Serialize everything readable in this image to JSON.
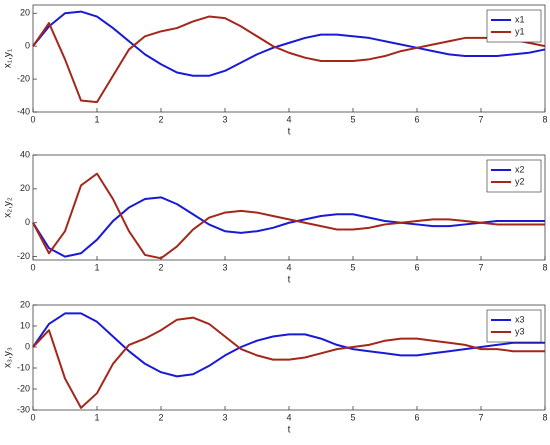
{
  "chart_data": [
    {
      "type": "line",
      "xlabel": "t",
      "ylabel": "x₁,y₁",
      "xlim": [
        0,
        8
      ],
      "xticks": [
        0,
        1,
        2,
        3,
        4,
        5,
        6,
        7,
        8
      ],
      "ylim": [
        -40,
        25
      ],
      "yticks": [
        -40,
        -20,
        0,
        20
      ],
      "legend": "upper right",
      "x": [
        0,
        0.25,
        0.5,
        0.75,
        1,
        1.25,
        1.5,
        1.75,
        2,
        2.25,
        2.5,
        2.75,
        3,
        3.25,
        3.5,
        3.75,
        4,
        4.25,
        4.5,
        4.75,
        5,
        5.25,
        5.5,
        5.75,
        6,
        6.25,
        6.5,
        6.75,
        7,
        7.25,
        7.5,
        7.75,
        8
      ],
      "series": [
        {
          "name": "x1",
          "color": "#1a1ad6",
          "values": [
            0,
            12,
            20,
            21,
            18,
            11,
            3,
            -5,
            -11,
            -16,
            -18,
            -18,
            -15,
            -10,
            -5,
            -1,
            2,
            5,
            7,
            7,
            6,
            5,
            3,
            1,
            -1,
            -3,
            -5,
            -6,
            -6,
            -6,
            -5,
            -4,
            -2
          ]
        },
        {
          "name": "y1",
          "color": "#a3281a",
          "values": [
            0,
            14,
            -8,
            -33,
            -34,
            -18,
            -2,
            6,
            9,
            11,
            15,
            18,
            17,
            12,
            6,
            0,
            -4,
            -7,
            -9,
            -9,
            -9,
            -8,
            -6,
            -3,
            -1,
            1,
            3,
            5,
            5,
            5,
            4,
            2,
            0
          ]
        }
      ]
    },
    {
      "type": "line",
      "xlabel": "t",
      "ylabel": "x₂,y₂",
      "xlim": [
        0,
        8
      ],
      "xticks": [
        0,
        1,
        2,
        3,
        4,
        5,
        6,
        7,
        8
      ],
      "ylim": [
        -22,
        40
      ],
      "yticks": [
        -20,
        0,
        20,
        40
      ],
      "legend": "upper right",
      "x": [
        0,
        0.25,
        0.5,
        0.75,
        1,
        1.25,
        1.5,
        1.75,
        2,
        2.25,
        2.5,
        2.75,
        3,
        3.25,
        3.5,
        3.75,
        4,
        4.25,
        4.5,
        4.75,
        5,
        5.25,
        5.5,
        5.75,
        6,
        6.25,
        6.5,
        6.75,
        7,
        7.25,
        7.5,
        7.75,
        8
      ],
      "series": [
        {
          "name": "x2",
          "color": "#1a1ad6",
          "values": [
            0,
            -15,
            -20,
            -18,
            -10,
            1,
            9,
            14,
            15,
            11,
            5,
            -1,
            -5,
            -6,
            -5,
            -3,
            0,
            2,
            4,
            5,
            5,
            3,
            1,
            0,
            -1,
            -2,
            -2,
            -1,
            0,
            1,
            1,
            1,
            1
          ]
        },
        {
          "name": "y2",
          "color": "#a3281a",
          "values": [
            0,
            -18,
            -5,
            22,
            29,
            14,
            -5,
            -19,
            -21,
            -14,
            -4,
            3,
            6,
            7,
            6,
            4,
            2,
            0,
            -2,
            -4,
            -4,
            -3,
            -1,
            0,
            1,
            2,
            2,
            1,
            0,
            -1,
            -1,
            -1,
            -1
          ]
        }
      ]
    },
    {
      "type": "line",
      "xlabel": "t",
      "ylabel": "x₃,y₃",
      "xlim": [
        0,
        8
      ],
      "xticks": [
        0,
        1,
        2,
        3,
        4,
        5,
        6,
        7,
        8
      ],
      "ylim": [
        -30,
        20
      ],
      "yticks": [
        -30,
        -20,
        -10,
        0,
        10,
        20
      ],
      "legend": "upper right",
      "x": [
        0,
        0.25,
        0.5,
        0.75,
        1,
        1.25,
        1.5,
        1.75,
        2,
        2.25,
        2.5,
        2.75,
        3,
        3.25,
        3.5,
        3.75,
        4,
        4.25,
        4.5,
        4.75,
        5,
        5.25,
        5.5,
        5.75,
        6,
        6.25,
        6.5,
        6.75,
        7,
        7.25,
        7.5,
        7.75,
        8
      ],
      "series": [
        {
          "name": "x3",
          "color": "#1a1ad6",
          "values": [
            0,
            11,
            16,
            16,
            12,
            5,
            -2,
            -8,
            -12,
            -14,
            -13,
            -9,
            -4,
            0,
            3,
            5,
            6,
            6,
            4,
            1,
            -1,
            -2,
            -3,
            -4,
            -4,
            -3,
            -2,
            -1,
            0,
            1,
            2,
            2,
            2
          ]
        },
        {
          "name": "y3",
          "color": "#a3281a",
          "values": [
            0,
            8,
            -15,
            -29,
            -22,
            -8,
            1,
            4,
            8,
            13,
            14,
            11,
            5,
            -1,
            -4,
            -6,
            -6,
            -5,
            -3,
            -1,
            0,
            1,
            3,
            4,
            4,
            3,
            2,
            1,
            -1,
            -1,
            -2,
            -2,
            -2
          ]
        }
      ]
    }
  ]
}
